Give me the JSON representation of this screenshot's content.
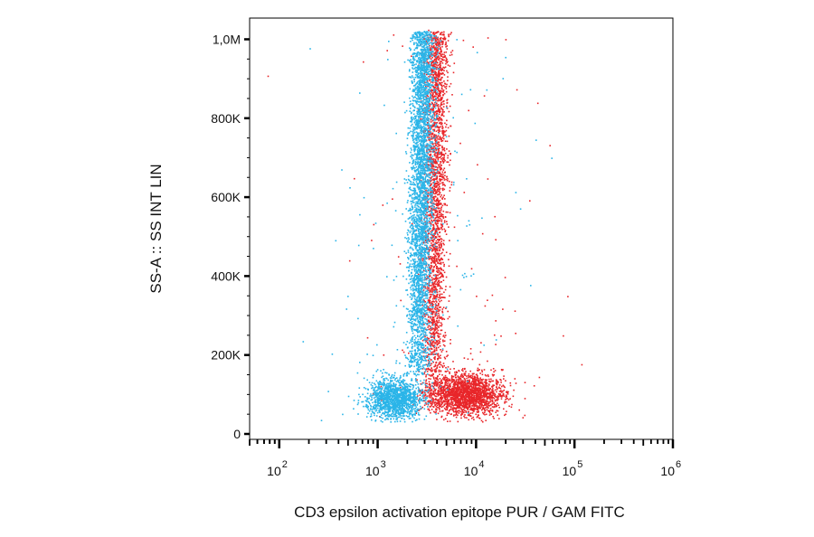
{
  "chart_data": {
    "type": "scatter",
    "title": "",
    "xlabel": "CD3 epsilon activation epitope PUR / GAM FITC",
    "ylabel": "SS-A :: SS INT LIN",
    "x_scale": "log",
    "xlim": [
      50,
      1000000
    ],
    "ylim": [
      0,
      1040000
    ],
    "x_ticks": [
      {
        "base": "10",
        "exp": "2",
        "value": 100
      },
      {
        "base": "10",
        "exp": "3",
        "value": 1000
      },
      {
        "base": "10",
        "exp": "4",
        "value": 10000
      },
      {
        "base": "10",
        "exp": "5",
        "value": 100000
      },
      {
        "base": "10",
        "exp": "6",
        "value": 1000000
      }
    ],
    "y_ticks": [
      {
        "label": "0",
        "value": 0
      },
      {
        "label": "200K",
        "value": 200000
      },
      {
        "label": "400K",
        "value": 400000
      },
      {
        "label": "600K",
        "value": 600000
      },
      {
        "label": "800K",
        "value": 800000
      },
      {
        "label": "1,0M",
        "value": 1000000
      }
    ],
    "grid": false,
    "legend": "none",
    "series": [
      {
        "color": "#e8262a",
        "clusters": [
          {
            "x_center": 3600,
            "y_min": 60000,
            "y_max": 1020000,
            "x_spread_log": 0.06,
            "n": 2600
          },
          {
            "x_center": 8000,
            "y_center": 100000,
            "x_spread_log": 0.18,
            "y_spread": 25000,
            "n": 2000
          }
        ]
      },
      {
        "color": "#2bb5e8",
        "clusters": [
          {
            "x_center": 2600,
            "y_min": 150000,
            "y_max": 1020000,
            "x_spread_log": 0.06,
            "n": 3600
          },
          {
            "x_center": 1500,
            "y_center": 90000,
            "x_spread_log": 0.14,
            "y_spread": 25000,
            "n": 1500
          }
        ]
      }
    ]
  }
}
